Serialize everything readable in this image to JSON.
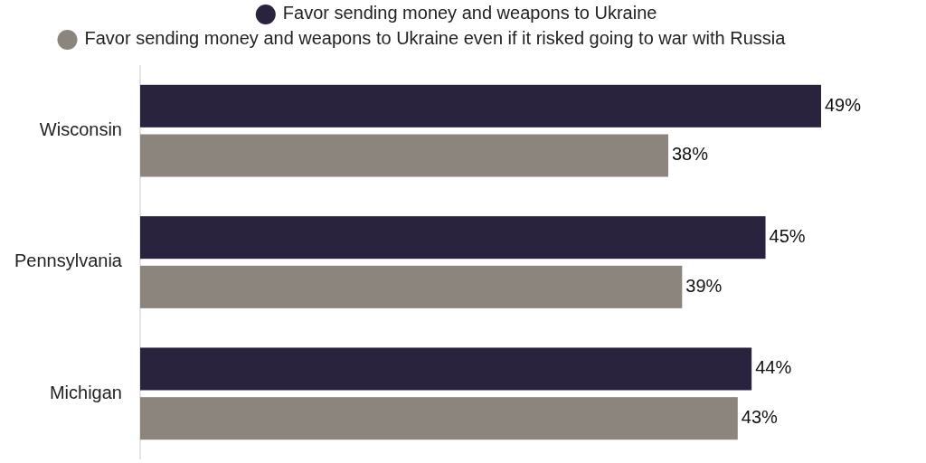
{
  "chart_data": {
    "type": "bar",
    "orientation": "horizontal",
    "legend": "top",
    "categories": [
      "Wisconsin",
      "Pennsylvania",
      "Michigan"
    ],
    "series": [
      {
        "name": "Favor sending money and weapons to Ukraine",
        "color": "#29233e",
        "values": [
          49,
          45,
          44
        ],
        "value_labels": [
          "49%",
          "45%",
          "44%"
        ]
      },
      {
        "name": "Favor sending money and weapons to Ukraine even if it risked going to war with Russia",
        "color": "#8c857e",
        "values": [
          38,
          39,
          43
        ],
        "value_labels": [
          "38%",
          "39%",
          "43%"
        ]
      }
    ]
  }
}
